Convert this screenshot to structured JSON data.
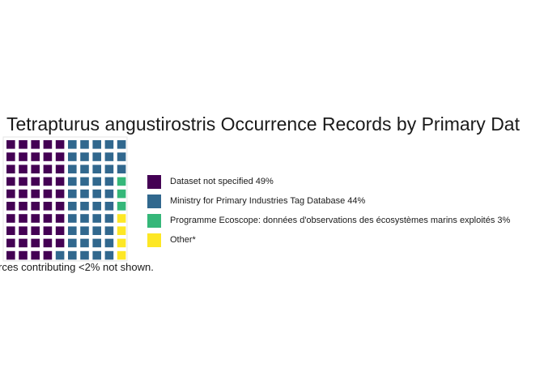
{
  "chart_data": {
    "type": "waffle",
    "title": "Tetrapturus angustirostris Occurrence Records by Primary Dat",
    "caption": "rces contributing <2% not shown.",
    "rows": 10,
    "cols": 10,
    "legend_position": "right",
    "grid": false,
    "series": [
      {
        "name": "Dataset not specified 49%",
        "value": 49,
        "color": "#440154"
      },
      {
        "name": "Ministry for Primary Industries Tag Database 44%",
        "value": 44,
        "color": "#31688E"
      },
      {
        "name": "Programme Ecoscope: données d'observations des écosystèmes marins exploités 3%",
        "value": 3,
        "color": "#35B779"
      },
      {
        "name": "Other*",
        "value": 4,
        "color": "#FDE725"
      }
    ]
  }
}
